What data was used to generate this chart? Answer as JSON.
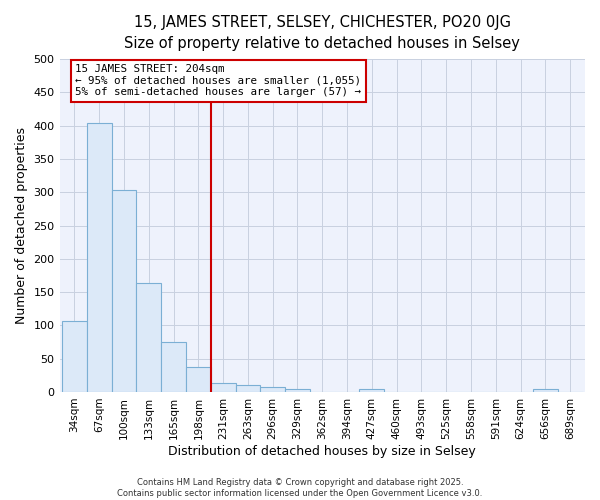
{
  "title1": "15, JAMES STREET, SELSEY, CHICHESTER, PO20 0JG",
  "title2": "Size of property relative to detached houses in Selsey",
  "xlabel": "Distribution of detached houses by size in Selsey",
  "ylabel": "Number of detached properties",
  "categories": [
    "34sqm",
    "67sqm",
    "100sqm",
    "133sqm",
    "165sqm",
    "198sqm",
    "231sqm",
    "263sqm",
    "296sqm",
    "329sqm",
    "362sqm",
    "394sqm",
    "427sqm",
    "460sqm",
    "493sqm",
    "525sqm",
    "558sqm",
    "591sqm",
    "624sqm",
    "656sqm",
    "689sqm"
  ],
  "values": [
    107,
    404,
    303,
    163,
    75,
    38,
    13,
    10,
    7,
    5,
    0,
    0,
    5,
    0,
    0,
    0,
    0,
    0,
    0,
    5,
    0
  ],
  "bar_color": "#dce9f8",
  "bar_edge_color": "#7bafd4",
  "property_line_x": 5.5,
  "annotation_line1": "15 JAMES STREET: 204sqm",
  "annotation_line2": "← 95% of detached houses are smaller (1,055)",
  "annotation_line3": "5% of semi-detached houses are larger (57) →",
  "annotation_box_color": "#ffffff",
  "annotation_box_edge": "#cc0000",
  "vline_color": "#cc0000",
  "ylim": [
    0,
    500
  ],
  "footer1": "Contains HM Land Registry data © Crown copyright and database right 2025.",
  "footer2": "Contains public sector information licensed under the Open Government Licence v3.0.",
  "bg_color": "#eef2fc",
  "grid_color": "#c8d0e0",
  "title_fontsize": 10.5,
  "subtitle_fontsize": 9.5,
  "axis_label_fontsize": 9,
  "tick_fontsize": 7.5,
  "footer_fontsize": 6
}
